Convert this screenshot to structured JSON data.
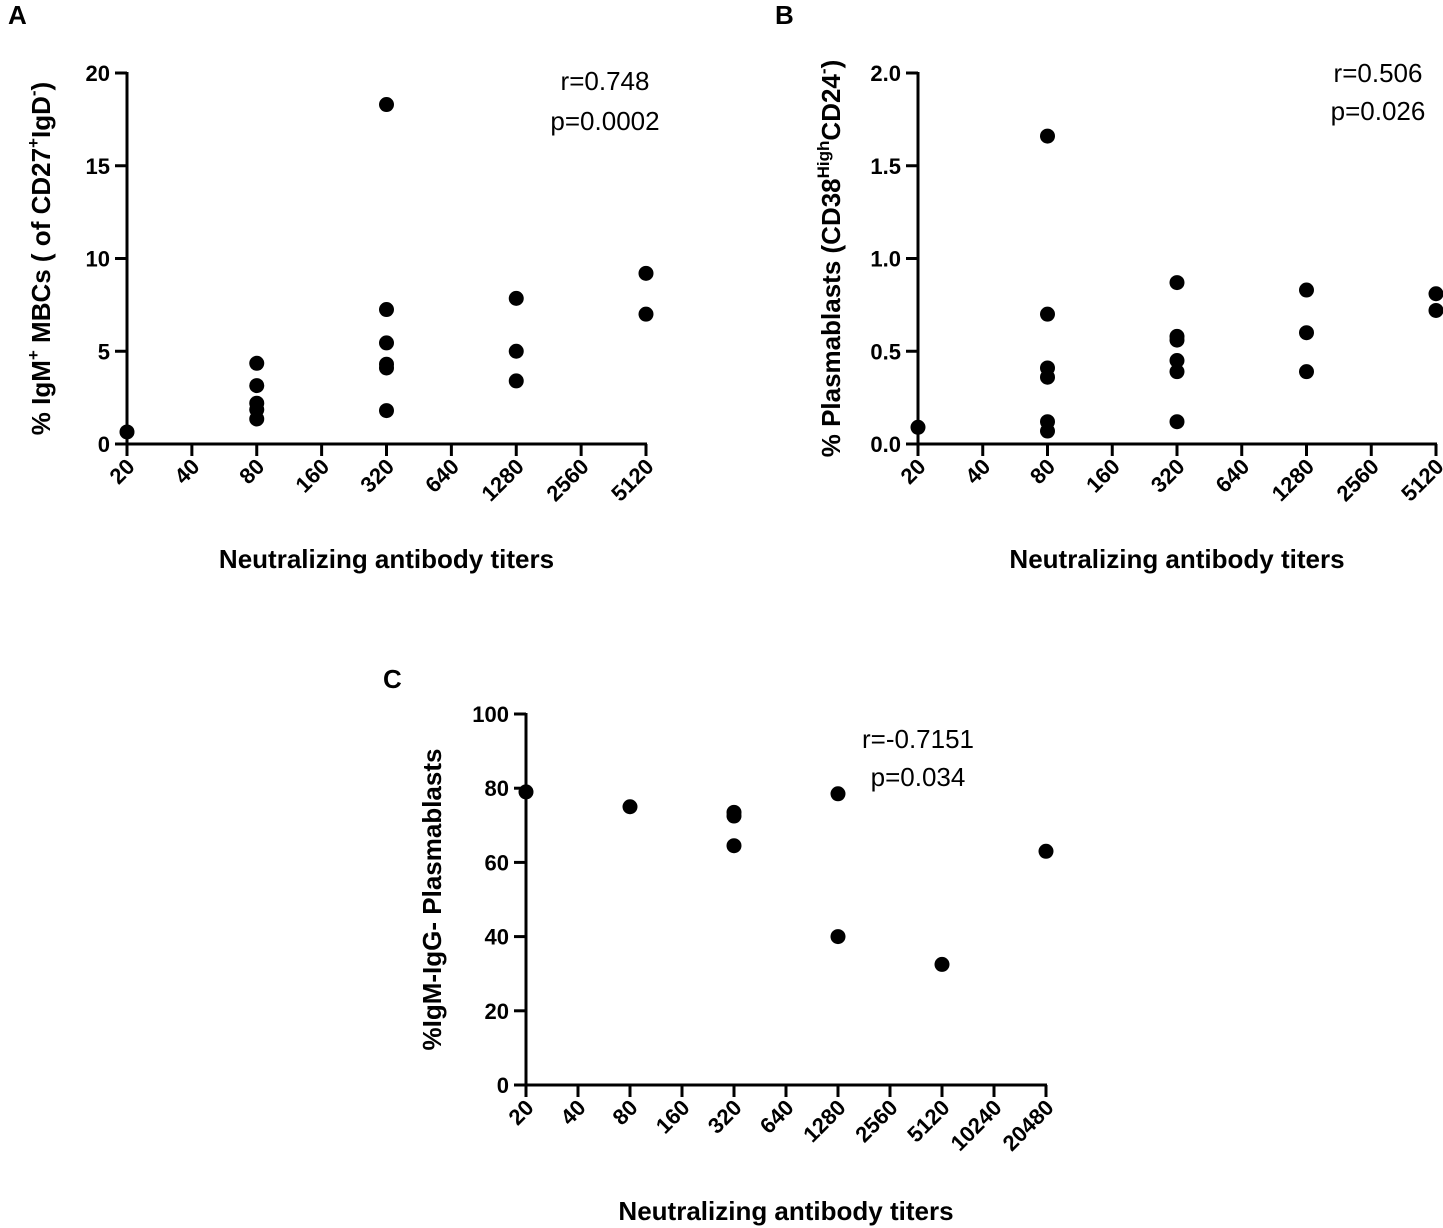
{
  "chart_data": [
    {
      "panel": "A",
      "type": "scatter",
      "xlabel": "Neutralizing antibody titers",
      "ylabel_parts": [
        {
          "text": "% IgM",
          "shift": 0
        },
        {
          "text": "+",
          "shift": 1
        },
        {
          "text": " MBCs ( of CD27",
          "shift": 0
        },
        {
          "text": "+",
          "shift": 1
        },
        {
          "text": "IgD",
          "shift": 0
        },
        {
          "text": "-",
          "shift": 1
        },
        {
          "text": ")",
          "shift": 0
        }
      ],
      "x_categories": [
        "20",
        "40",
        "80",
        "160",
        "320",
        "640",
        "1280",
        "2560",
        "5120"
      ],
      "ylim": [
        0,
        20
      ],
      "yticks": [
        0,
        5,
        10,
        15,
        20
      ],
      "annotation": [
        "r=0.748",
        "p=0.0002"
      ],
      "points": [
        {
          "x": "20",
          "y": 0.65
        },
        {
          "x": "80",
          "y": 4.35
        },
        {
          "x": "80",
          "y": 3.15
        },
        {
          "x": "80",
          "y": 2.2
        },
        {
          "x": "80",
          "y": 1.85
        },
        {
          "x": "80",
          "y": 1.35
        },
        {
          "x": "320",
          "y": 18.3
        },
        {
          "x": "320",
          "y": 7.25
        },
        {
          "x": "320",
          "y": 5.45
        },
        {
          "x": "320",
          "y": 4.3
        },
        {
          "x": "320",
          "y": 4.1
        },
        {
          "x": "320",
          "y": 1.8
        },
        {
          "x": "1280",
          "y": 7.85
        },
        {
          "x": "1280",
          "y": 5.0
        },
        {
          "x": "1280",
          "y": 3.4
        },
        {
          "x": "5120",
          "y": 9.2
        },
        {
          "x": "5120",
          "y": 7.0
        }
      ]
    },
    {
      "panel": "B",
      "type": "scatter",
      "xlabel": "Neutralizing antibody titers",
      "ylabel_parts": [
        {
          "text": "% Plasmablasts (CD38",
          "shift": 0
        },
        {
          "text": "High",
          "shift": 1
        },
        {
          "text": "CD24",
          "shift": 0
        },
        {
          "text": "-",
          "shift": 1
        },
        {
          "text": ")",
          "shift": 0
        }
      ],
      "x_categories": [
        "20",
        "40",
        "80",
        "160",
        "320",
        "640",
        "1280",
        "2560",
        "5120"
      ],
      "ylim": [
        0,
        2.0
      ],
      "yticks": [
        "0.0",
        "0.5",
        "1.0",
        "1.5",
        "2.0"
      ],
      "annotation": [
        "r=0.506",
        "p=0.026"
      ],
      "points": [
        {
          "x": "20",
          "y": 0.09
        },
        {
          "x": "80",
          "y": 1.66
        },
        {
          "x": "80",
          "y": 0.7
        },
        {
          "x": "80",
          "y": 0.41
        },
        {
          "x": "80",
          "y": 0.36
        },
        {
          "x": "80",
          "y": 0.12
        },
        {
          "x": "80",
          "y": 0.07
        },
        {
          "x": "320",
          "y": 0.87
        },
        {
          "x": "320",
          "y": 0.58
        },
        {
          "x": "320",
          "y": 0.56
        },
        {
          "x": "320",
          "y": 0.45
        },
        {
          "x": "320",
          "y": 0.39
        },
        {
          "x": "320",
          "y": 0.12
        },
        {
          "x": "1280",
          "y": 0.83
        },
        {
          "x": "1280",
          "y": 0.6
        },
        {
          "x": "1280",
          "y": 0.39
        },
        {
          "x": "5120",
          "y": 0.81
        },
        {
          "x": "5120",
          "y": 0.72
        }
      ]
    },
    {
      "panel": "C",
      "type": "scatter",
      "xlabel": "Neutralizing antibody titers",
      "ylabel_parts": [
        {
          "text": "%IgM-IgG- Plasmablasts",
          "shift": 0
        }
      ],
      "x_categories": [
        "20",
        "40",
        "80",
        "160",
        "320",
        "640",
        "1280",
        "2560",
        "5120",
        "10240",
        "20480"
      ],
      "ylim": [
        0,
        100
      ],
      "yticks": [
        0,
        20,
        40,
        60,
        80,
        100
      ],
      "annotation": [
        "r=-0.7151",
        "p=0.034"
      ],
      "points": [
        {
          "x": "20",
          "y": 79
        },
        {
          "x": "80",
          "y": 75
        },
        {
          "x": "320",
          "y": 73.5
        },
        {
          "x": "320",
          "y": 72.5
        },
        {
          "x": "320",
          "y": 64.5
        },
        {
          "x": "1280",
          "y": 78.5
        },
        {
          "x": "1280",
          "y": 40
        },
        {
          "x": "5120",
          "y": 32.5
        },
        {
          "x": "20480",
          "y": 63
        }
      ]
    }
  ]
}
